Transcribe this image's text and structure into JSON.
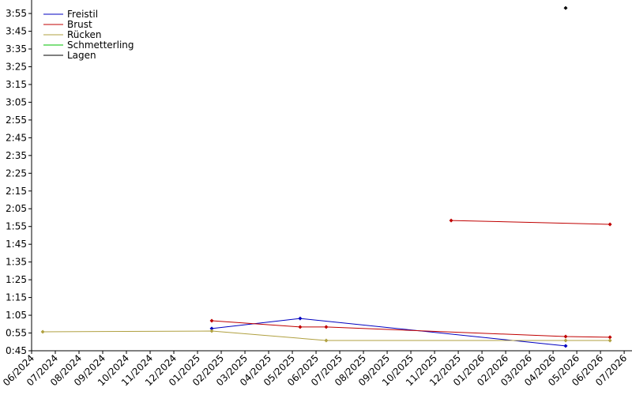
{
  "chart_data": {
    "type": "line",
    "xticks": [
      {
        "value": 0,
        "label": "06/2024"
      },
      {
        "value": 1,
        "label": "07/2024"
      },
      {
        "value": 2,
        "label": "08/2024"
      },
      {
        "value": 3,
        "label": "09/2024"
      },
      {
        "value": 4,
        "label": "10/2024"
      },
      {
        "value": 5,
        "label": "11/2024"
      },
      {
        "value": 6,
        "label": "12/2024"
      },
      {
        "value": 7,
        "label": "01/2025"
      },
      {
        "value": 8,
        "label": "02/2025"
      },
      {
        "value": 9,
        "label": "03/2025"
      },
      {
        "value": 10,
        "label": "04/2025"
      },
      {
        "value": 11,
        "label": "05/2025"
      },
      {
        "value": 12,
        "label": "06/2025"
      },
      {
        "value": 13,
        "label": "07/2025"
      },
      {
        "value": 14,
        "label": "08/2025"
      },
      {
        "value": 15,
        "label": "09/2025"
      },
      {
        "value": 16,
        "label": "10/2025"
      },
      {
        "value": 17,
        "label": "11/2025"
      },
      {
        "value": 18,
        "label": "12/2025"
      },
      {
        "value": 19,
        "label": "01/2026"
      },
      {
        "value": 20,
        "label": "02/2026"
      },
      {
        "value": 21,
        "label": "03/2026"
      },
      {
        "value": 22,
        "label": "04/2026"
      },
      {
        "value": 23,
        "label": "05/2026"
      },
      {
        "value": 24,
        "label": "06/2026"
      },
      {
        "value": 25,
        "label": "07/2026"
      }
    ],
    "xlim": [
      0,
      25.33
    ],
    "ylim": [
      45,
      242.6
    ],
    "yticks": [
      {
        "value": 45,
        "label": "0:45"
      },
      {
        "value": 55,
        "label": "0:55"
      },
      {
        "value": 65,
        "label": "1:05"
      },
      {
        "value": 75,
        "label": "1:15"
      },
      {
        "value": 85,
        "label": "1:25"
      },
      {
        "value": 95,
        "label": "1:35"
      },
      {
        "value": 105,
        "label": "1:45"
      },
      {
        "value": 115,
        "label": "1:55"
      },
      {
        "value": 125,
        "label": "2:05"
      },
      {
        "value": 135,
        "label": "2:15"
      },
      {
        "value": 145,
        "label": "2:25"
      },
      {
        "value": 155,
        "label": "2:35"
      },
      {
        "value": 165,
        "label": "2:45"
      },
      {
        "value": 175,
        "label": "2:55"
      },
      {
        "value": 185,
        "label": "3:05"
      },
      {
        "value": 195,
        "label": "3:15"
      },
      {
        "value": 205,
        "label": "3:25"
      },
      {
        "value": 215,
        "label": "3:35"
      },
      {
        "value": 225,
        "label": "3:45"
      },
      {
        "value": 235,
        "label": "3:55"
      }
    ],
    "legend": "upper left",
    "series": [
      {
        "name": "Freistil",
        "color": "#0000c0",
        "x": [
          7.6,
          11.33,
          22.53
        ],
        "values": [
          57.5,
          63.2,
          47.7
        ]
      },
      {
        "name": "Brust",
        "color": "#c00000",
        "x": [
          7.6,
          11.33,
          12.43,
          22.53,
          24.4,
          null,
          17.7,
          24.4
        ],
        "values": [
          61.9,
          58.4,
          58.4,
          53.0,
          52.6,
          null,
          118.4,
          116.2
        ]
      },
      {
        "name": "Rücken",
        "color": "#b0a040",
        "x": [
          0.47,
          7.6,
          12.43,
          22.53,
          24.4
        ],
        "values": [
          55.7,
          56.1,
          50.8,
          50.8,
          50.8
        ]
      },
      {
        "name": "Schmetterling",
        "color": "#00c000",
        "x": [],
        "values": []
      },
      {
        "name": "Lagen",
        "color": "#000000",
        "x": [
          22.53
        ],
        "values": [
          238.1
        ]
      }
    ]
  }
}
